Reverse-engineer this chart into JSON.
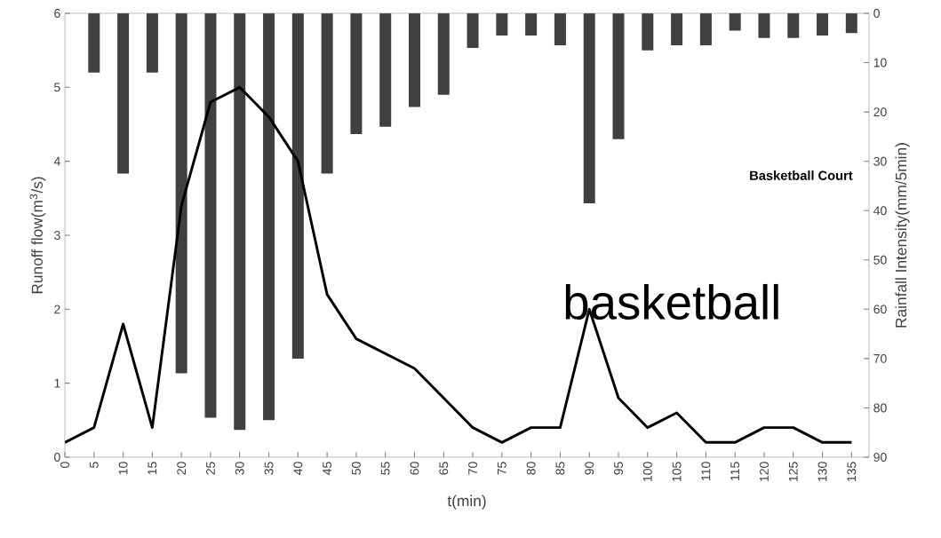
{
  "chart_data": {
    "type": "line",
    "categories": [
      "0",
      "5",
      "10",
      "15",
      "20",
      "25",
      "30",
      "35",
      "40",
      "45",
      "50",
      "55",
      "60",
      "65",
      "70",
      "75",
      "80",
      "85",
      "90",
      "95",
      "100",
      "105",
      "110",
      "115",
      "120",
      "125",
      "130",
      "135"
    ],
    "series": [
      {
        "type": "bar",
        "axis": "y2",
        "color": "#404040",
        "values": [
          0,
          12,
          32.5,
          12,
          73,
          82,
          84.5,
          82.5,
          70,
          32.5,
          24.5,
          23,
          19,
          16.5,
          7,
          4.5,
          4.5,
          6.5,
          38.5,
          25.5,
          7.5,
          6.5,
          6.5,
          3.5,
          5,
          5,
          4.5,
          4
        ]
      },
      {
        "color": "#000000",
        "values": [
          0.2,
          0.4,
          1.8,
          0.4,
          3.4,
          4.8,
          5.0,
          4.6,
          4.0,
          2.2,
          1.6,
          1.4,
          1.2,
          0.8,
          0.4,
          0.2,
          0.4,
          0.4,
          2.0,
          0.8,
          0.4,
          0.6,
          0.2,
          0.2,
          0.4,
          0.4,
          0.2,
          0.2
        ]
      }
    ],
    "xlabel": "t(min)",
    "ylabel": "Runoff flow(m$^{3}$/s)",
    "y2label": "Rainfall Intensity(mm/5min)",
    "ylim": [
      0,
      6
    ],
    "yticks": [
      0,
      1,
      2,
      3,
      4,
      5,
      6
    ],
    "y2lim": [
      90,
      0
    ],
    "y2ticks": [
      0,
      10,
      20,
      30,
      40,
      50,
      60,
      70,
      80,
      90
    ],
    "annotations": [
      "Basketball Court",
      "basketball"
    ]
  }
}
